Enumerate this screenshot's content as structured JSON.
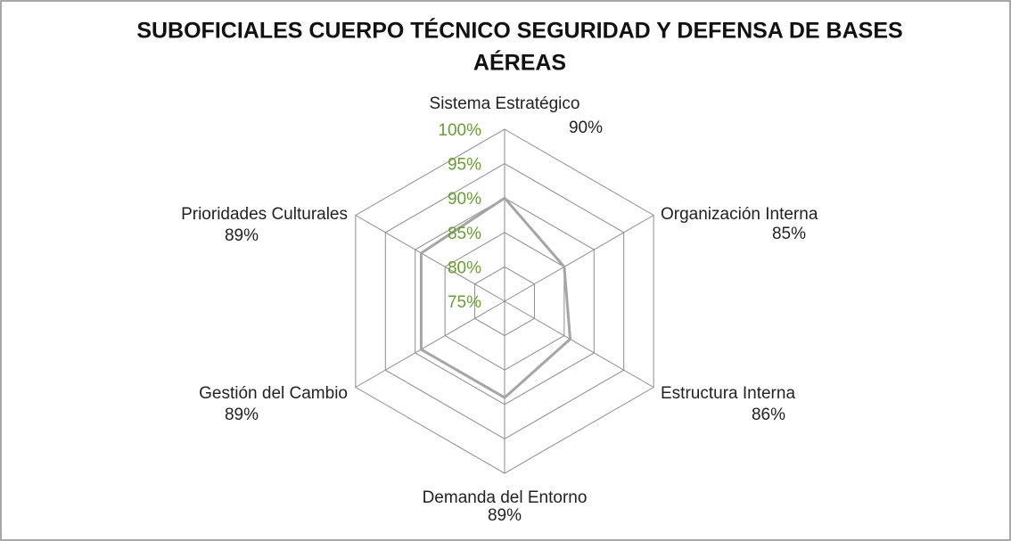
{
  "chart_data": {
    "type": "radar",
    "title": [
      "SUBOFICIALES CUERPO TÉCNICO SEGURIDAD Y DEFENSA DE BASES",
      "AÉREAS"
    ],
    "categories": [
      "Sistema Estratégico",
      "Organización Interna",
      "Estructura Interna",
      "Demanda del Entorno",
      "Gestión del Cambio",
      "Prioridades Culturales"
    ],
    "values": [
      90,
      85,
      86,
      89,
      89,
      89
    ],
    "value_labels": [
      "90%",
      "85%",
      "86%",
      "89%",
      "89%",
      "89%"
    ],
    "color": "#a5a5a5",
    "rlim": [
      75,
      100
    ],
    "rticks": [
      {
        "value": 75,
        "label": "75%"
      },
      {
        "value": 80,
        "label": "80%"
      },
      {
        "value": 85,
        "label": "85%"
      },
      {
        "value": 90,
        "label": "90%"
      },
      {
        "value": 95,
        "label": "95%"
      },
      {
        "value": 100,
        "label": "100%"
      }
    ],
    "tick_color": "#6a9a3a",
    "grid": true
  }
}
